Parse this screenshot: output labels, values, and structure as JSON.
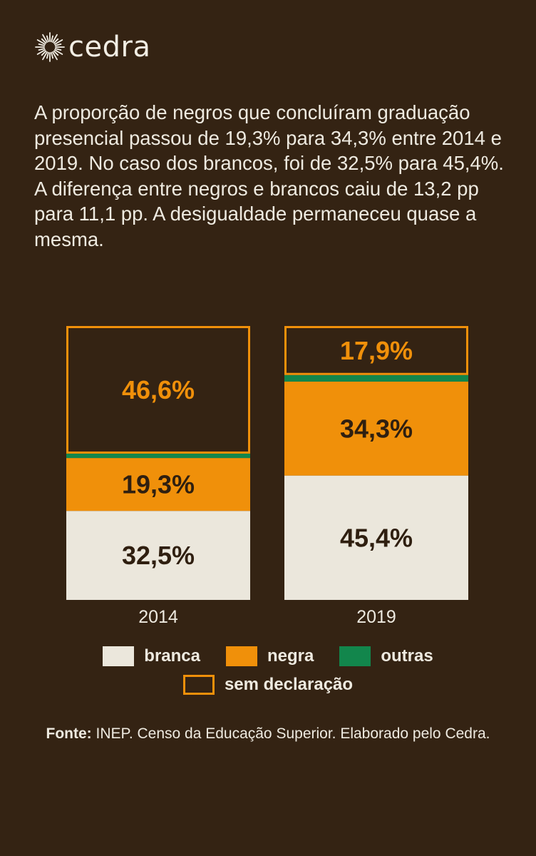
{
  "brand": {
    "name": "cedra"
  },
  "intro_text": "A proporção de negros que concluíram graduação presencial passou de 19,3% para 34,3% entre 2014 e 2019. No caso dos brancos, foi de 32,5% para 45,4%. A diferença entre negros e brancos caiu de 13,2 pp para 11,1 pp. A desigualdade permaneceu quase a mesma.",
  "colors": {
    "background": "#342313",
    "branca": "#ebe7dc",
    "negra": "#f0900a",
    "outras": "#12864c",
    "sem_declaracao_border": "#f0900a"
  },
  "chart_data": {
    "type": "bar",
    "stacked": true,
    "categories": [
      "2014",
      "2019"
    ],
    "series": [
      {
        "name": "branca",
        "values": [
          32.5,
          45.4
        ],
        "labels": [
          "32,5%",
          "45,4%"
        ]
      },
      {
        "name": "negra",
        "values": [
          19.3,
          34.3
        ],
        "labels": [
          "19,3%",
          "34,3%"
        ]
      },
      {
        "name": "outras",
        "values": [
          1.6,
          2.4
        ],
        "labels": [
          "",
          ""
        ]
      },
      {
        "name": "sem declaração",
        "values": [
          46.6,
          17.9
        ],
        "labels": [
          "46,6%",
          "17,9%"
        ]
      }
    ],
    "ylim": [
      0,
      100
    ],
    "grid": false,
    "legend_position": "bottom"
  },
  "legend": {
    "branca": "branca",
    "negra": "negra",
    "outras": "outras",
    "sem_declaracao": "sem declaração"
  },
  "source": {
    "prefix": "Fonte:",
    "text": " INEP. Censo da Educação Superior. Elaborado pelo Cedra."
  }
}
